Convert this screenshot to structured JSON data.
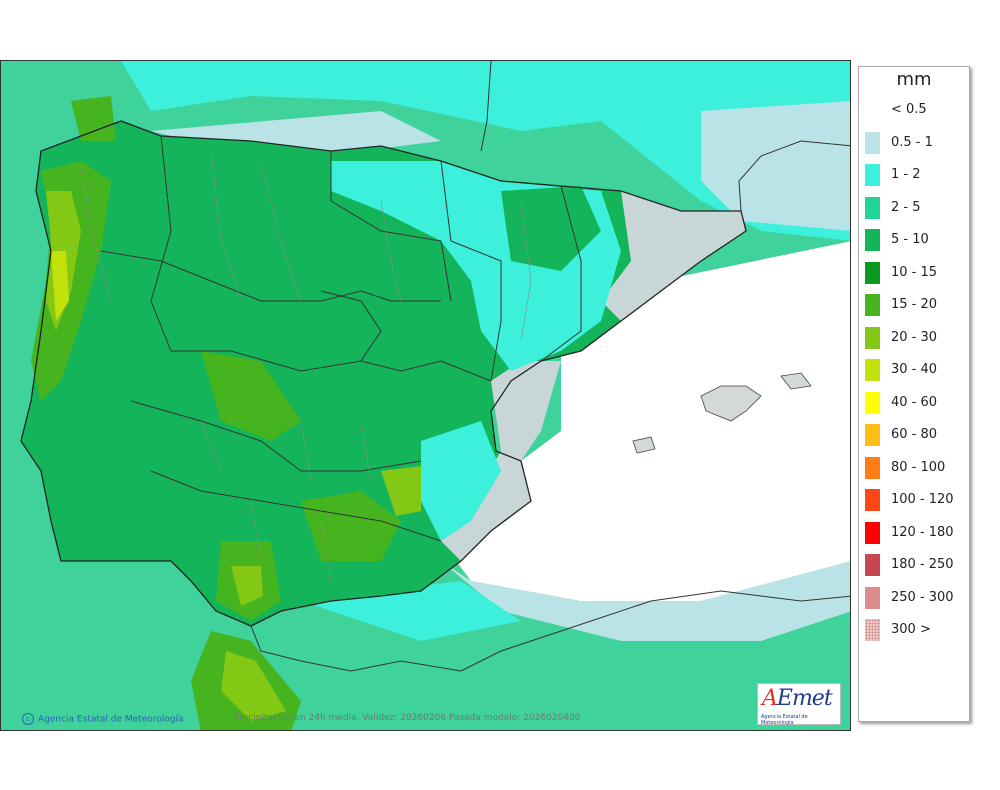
{
  "legend": {
    "unit": "mm",
    "items": [
      {
        "label": "< 0.5",
        "color": "#ffffff"
      },
      {
        "label": "0.5 - 1",
        "color": "#b9e3e6"
      },
      {
        "label": "1 - 2",
        "color": "#3cf0dc"
      },
      {
        "label": "2 - 5",
        "color": "#20d49a"
      },
      {
        "label": "5 - 10",
        "color": "#14b45a"
      },
      {
        "label": "10 - 15",
        "color": "#0a9a1e"
      },
      {
        "label": "15 - 20",
        "color": "#46b41e"
      },
      {
        "label": "20 - 30",
        "color": "#82c814"
      },
      {
        "label": "30 - 40",
        "color": "#c3e10a"
      },
      {
        "label": "40 - 60",
        "color": "#ffff00"
      },
      {
        "label": "60 - 80",
        "color": "#ffbe14"
      },
      {
        "label": "80 - 100",
        "color": "#ff7d14"
      },
      {
        "label": "100 - 120",
        "color": "#ff4614"
      },
      {
        "label": "120 - 180",
        "color": "#ff0000"
      },
      {
        "label": "180 - 250",
        "color": "#c84650"
      },
      {
        "label": "250 - 300",
        "color": "#dc8c8c"
      },
      {
        "label": "300 >",
        "color": "#f0c8c8"
      }
    ]
  },
  "credit": "Agencia Estatal de Meteorología",
  "caption": "Precipitación en 24h media. Validez: 20260206 Pasada modelo: 2026020400",
  "logo": {
    "text_a": "A",
    "text_rest": "Emet",
    "subtitle": "Agencia Estatal de Meteorología"
  }
}
